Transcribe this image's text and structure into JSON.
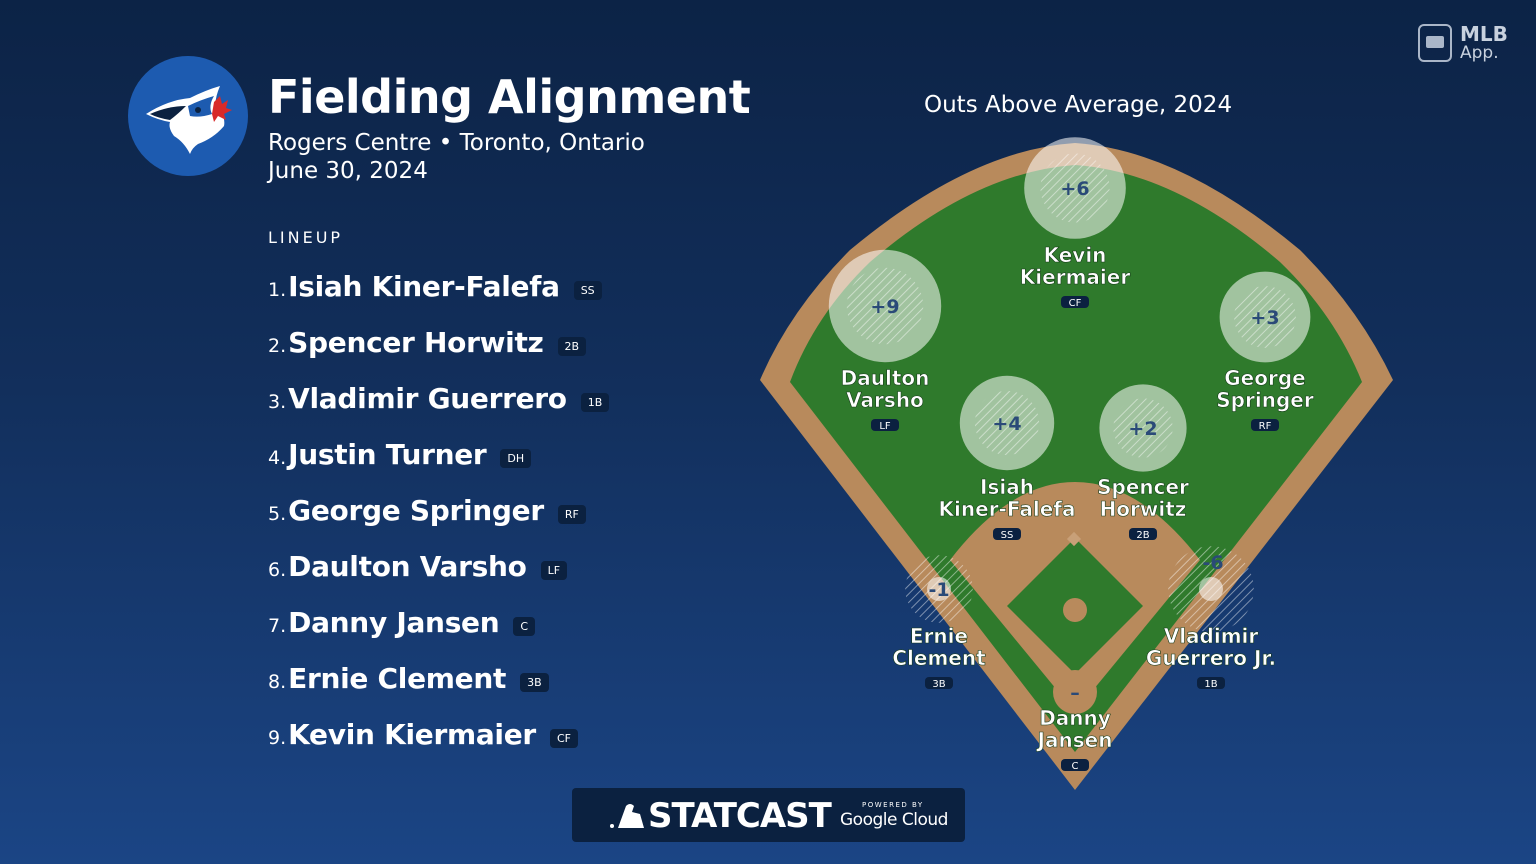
{
  "header": {
    "title": "Fielding Alignment",
    "subtitle": "Rogers Centre • Toronto, Ontario",
    "date": "June 30, 2024"
  },
  "lineup_heading": "LINEUP",
  "lineup": [
    {
      "num": "1.",
      "name": "Isiah Kiner-Falefa",
      "pos": "SS"
    },
    {
      "num": "2.",
      "name": "Spencer Horwitz",
      "pos": "2B"
    },
    {
      "num": "3.",
      "name": "Vladimir Guerrero",
      "pos": "1B"
    },
    {
      "num": "4.",
      "name": "Justin Turner",
      "pos": "DH"
    },
    {
      "num": "5.",
      "name": "George Springer",
      "pos": "RF"
    },
    {
      "num": "6.",
      "name": "Daulton Varsho",
      "pos": "LF"
    },
    {
      "num": "7.",
      "name": "Danny Jansen",
      "pos": "C"
    },
    {
      "num": "8.",
      "name": "Ernie Clement",
      "pos": "3B"
    },
    {
      "num": "9.",
      "name": "Kevin Kiermaier",
      "pos": "CF"
    }
  ],
  "field": {
    "title": "Outs Above Average, 2024",
    "players": [
      {
        "key": "cf",
        "oaa": "+6",
        "oaa_value": 6,
        "name1": "Kevin",
        "name2": "Kiermaier",
        "pos": "CF"
      },
      {
        "key": "lf",
        "oaa": "+9",
        "oaa_value": 9,
        "name1": "Daulton",
        "name2": "Varsho",
        "pos": "LF"
      },
      {
        "key": "rf",
        "oaa": "+3",
        "oaa_value": 3,
        "name1": "George",
        "name2": "Springer",
        "pos": "RF"
      },
      {
        "key": "ss",
        "oaa": "+4",
        "oaa_value": 4,
        "name1": "Isiah",
        "name2": "Kiner-Falefa",
        "pos": "SS"
      },
      {
        "key": "2b",
        "oaa": "+2",
        "oaa_value": 2,
        "name1": "Spencer",
        "name2": "Horwitz",
        "pos": "2B"
      },
      {
        "key": "3b",
        "oaa": "-1",
        "oaa_value": -1,
        "name1": "Ernie",
        "name2": "Clement",
        "pos": "3B"
      },
      {
        "key": "1b",
        "oaa": "-6",
        "oaa_value": -6,
        "name1": "Vladimir",
        "name2": "Guerrero Jr.",
        "pos": "1B"
      },
      {
        "key": "c",
        "oaa": "–",
        "oaa_value": null,
        "name1": "Danny",
        "name2": "Jansen",
        "pos": "C"
      }
    ]
  },
  "branding": {
    "mlb_line1": "MLB",
    "mlb_line2": "App.",
    "statcast": "STATCAST",
    "powered_by": "POWERED BY",
    "google_cloud": "Google Cloud"
  },
  "colors": {
    "grass": "#2f7a2c",
    "dirt": "#b88a5c",
    "logo_bg": "#1d5bb0",
    "badge_bg": "#0b2140"
  }
}
